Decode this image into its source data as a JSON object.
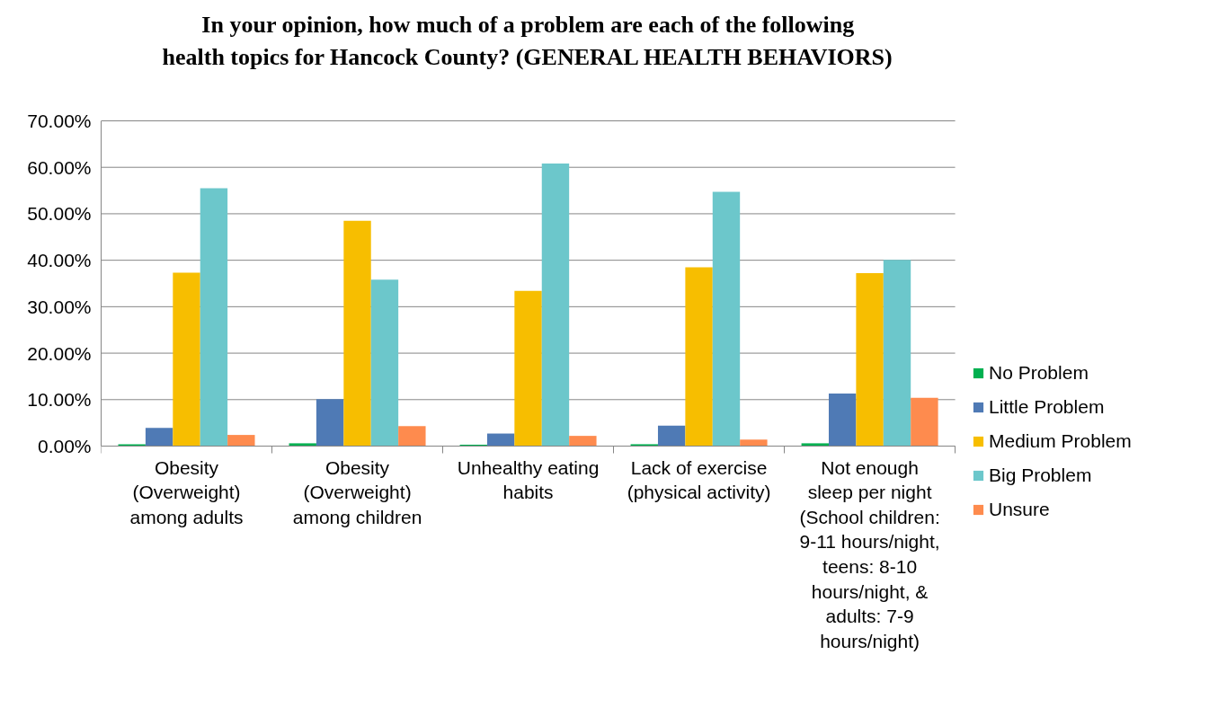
{
  "chart_data": {
    "type": "bar",
    "title": "In your opinion, how much of a problem are each of the following health topics for Hancock County? (GENERAL HEALTH BEHAVIORS)",
    "categories": [
      "Obesity\n(Overweight)\namong adults",
      "Obesity\n(Overweight)\namong children",
      "Unhealthy eating\nhabits",
      "Lack of exercise\n(physical activity)",
      "Not enough\nsleep per night\n(School children:\n9-11 hours/night,\nteens: 8-10\nhours/night, &\nadults: 7-9\nhours/night)"
    ],
    "series": [
      {
        "name": "No Problem",
        "color": "#00b050",
        "values": [
          0.4,
          0.6,
          0.3,
          0.4,
          0.6
        ]
      },
      {
        "name": "Little Problem",
        "color": "#4f7ab5",
        "values": [
          3.9,
          10.1,
          2.7,
          4.4,
          11.3
        ]
      },
      {
        "name": "Medium Problem",
        "color": "#f7be00",
        "values": [
          37.3,
          48.5,
          33.4,
          38.5,
          37.2
        ]
      },
      {
        "name": "Big Problem",
        "color": "#6cc7cb",
        "values": [
          55.5,
          35.8,
          60.8,
          54.7,
          40.1
        ]
      },
      {
        "name": "Unsure",
        "color": "#fe8b4e",
        "values": [
          2.4,
          4.3,
          2.2,
          1.4,
          10.4
        ]
      }
    ],
    "ylim": [
      0,
      70
    ],
    "yticks": [
      {
        "value": 0,
        "label": "0.00%"
      },
      {
        "value": 10,
        "label": "10.00%"
      },
      {
        "value": 20,
        "label": "20.00%"
      },
      {
        "value": 30,
        "label": "30.00%"
      },
      {
        "value": 40,
        "label": "40.00%"
      },
      {
        "value": 50,
        "label": "50.00%"
      },
      {
        "value": 60,
        "label": "60.00%"
      },
      {
        "value": 70,
        "label": "70.00%"
      }
    ],
    "grid": "y",
    "legend": "right"
  }
}
